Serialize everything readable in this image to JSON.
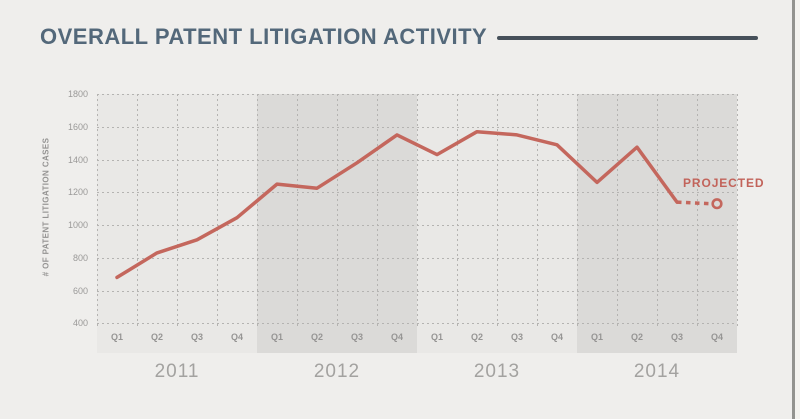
{
  "header": {
    "title": "OVERALL PATENT LITIGATION ACTIVITY"
  },
  "chart_data": {
    "type": "line",
    "title": "OVERALL PATENT LITIGATION ACTIVITY",
    "ylabel": "# OF PATENT LITIGATION CASES",
    "ylim": [
      400,
      1800
    ],
    "yticks": [
      1800,
      1600,
      1400,
      1200,
      1000,
      800,
      600,
      400
    ],
    "grid": "dotted",
    "years": [
      "2011",
      "2012",
      "2013",
      "2014"
    ],
    "quarters_per_year": [
      "Q1",
      "Q2",
      "Q3",
      "Q4"
    ],
    "shaded_years": [
      "2012",
      "2014"
    ],
    "series": [
      {
        "name": "# of patent litigation cases",
        "values": [
          680,
          830,
          910,
          1045,
          1250,
          1225,
          1380,
          1550,
          1430,
          1570,
          1550,
          1490,
          1260,
          1475,
          1140,
          1130
        ]
      }
    ],
    "projected": {
      "label": "PROJECTED",
      "start_index": 14,
      "marker": "open-circle"
    },
    "line_color": "#c4675d",
    "projected_label_color": "#c2635a",
    "marker_fill": "#dbdad8"
  }
}
